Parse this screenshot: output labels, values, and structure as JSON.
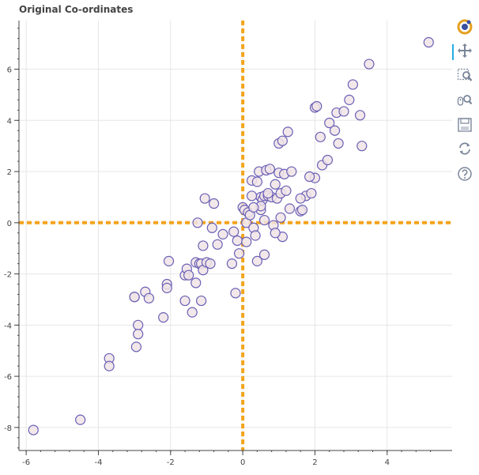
{
  "title": "Original Co-ordinates",
  "toolbar": {
    "tools": [
      {
        "name": "bokeh-logo-icon"
      },
      {
        "name": "pan-icon"
      },
      {
        "name": "box-zoom-icon"
      },
      {
        "name": "wheel-zoom-icon"
      },
      {
        "name": "save-icon"
      },
      {
        "name": "reset-icon"
      },
      {
        "name": "help-icon"
      }
    ],
    "active_color": "#26aae1"
  },
  "chart_data": {
    "type": "scatter",
    "title": "Original Co-ordinates",
    "xlabel": "",
    "ylabel": "",
    "xlim": [
      -6.2,
      5.8
    ],
    "ylim": [
      -8.9,
      7.9
    ],
    "xticks": [
      -6,
      -4,
      -2,
      0,
      2,
      4
    ],
    "yticks": [
      -8,
      -6,
      -4,
      -2,
      0,
      2,
      4,
      6
    ],
    "grid": true,
    "marker_fill": "#f0e4e6",
    "marker_line": "#6a5fb5",
    "reference_line_color": "#f4a41c",
    "reference_lines": {
      "x": 0,
      "y": 0
    },
    "series": [
      {
        "x": [
          -5.8,
          -4.5,
          -3.7,
          -3.7,
          -3.0,
          -2.95,
          -2.9,
          -2.9,
          -3.0,
          -2.7,
          -2.6,
          -2.2,
          -2.1,
          -2.1,
          -2.05,
          -1.6,
          -1.6,
          -1.55,
          -1.5,
          -1.4,
          -1.3,
          -1.3,
          -1.25,
          -1.2,
          -1.15,
          -1.15,
          -1.1,
          -1.1,
          -1.05,
          -1.0,
          -0.9,
          -0.85,
          -0.8,
          -0.7,
          -0.3,
          -0.2,
          -0.25,
          -0.15,
          -0.1,
          0.0,
          0.05,
          0.1,
          0.15,
          0.2,
          0.25,
          0.3,
          0.35,
          0.4,
          0.45,
          0.5,
          0.5,
          0.55,
          0.6,
          0.6,
          0.65,
          0.7,
          0.75,
          0.8,
          0.85,
          0.9,
          0.95,
          1.0,
          1.0,
          1.05,
          1.1,
          1.15,
          1.2,
          1.25,
          1.3,
          1.35,
          1.6,
          1.65,
          1.75,
          1.9,
          2.0,
          2.0,
          2.05,
          2.15,
          2.2,
          2.35,
          2.4,
          2.55,
          2.6,
          2.65,
          2.8,
          2.95,
          3.05,
          3.25,
          3.3,
          3.5,
          5.15,
          1.1,
          0.5,
          -0.55,
          0.4,
          0.1,
          0.9,
          1.05,
          0.6,
          0.25,
          1.85,
          1.6,
          0.3,
          0.7
        ],
        "y": [
          -8.1,
          -7.7,
          -5.3,
          -5.6,
          -2.9,
          -4.85,
          -4.0,
          -4.35,
          -2.9,
          -2.7,
          -2.95,
          -3.7,
          -2.4,
          -2.55,
          -1.5,
          -2.05,
          -3.05,
          -1.8,
          -2.05,
          -3.5,
          -1.55,
          -2.35,
          0.0,
          -1.6,
          -1.6,
          -3.05,
          -1.85,
          -0.9,
          0.95,
          -1.55,
          -1.6,
          -0.2,
          0.75,
          -0.85,
          -1.6,
          -2.75,
          -0.35,
          -0.7,
          -1.2,
          0.6,
          0.5,
          0.0,
          0.4,
          0.3,
          1.65,
          -0.2,
          -0.5,
          1.6,
          2.0,
          1.0,
          0.5,
          0.9,
          1.05,
          -1.25,
          2.05,
          1.05,
          2.1,
          1.0,
          -0.1,
          1.5,
          0.95,
          1.95,
          3.1,
          1.15,
          3.2,
          1.9,
          1.25,
          3.55,
          0.55,
          2.0,
          0.45,
          0.5,
          1.05,
          1.15,
          4.5,
          1.75,
          4.55,
          3.35,
          2.25,
          2.45,
          3.9,
          3.6,
          4.3,
          3.1,
          4.35,
          4.8,
          5.4,
          4.2,
          3.0,
          6.2,
          7.05,
          -0.55,
          0.65,
          -0.45,
          -1.5,
          -0.75,
          -0.4,
          0.2,
          0.1,
          1.05,
          1.8,
          0.95,
          0.6,
          1.15
        ]
      }
    ]
  }
}
